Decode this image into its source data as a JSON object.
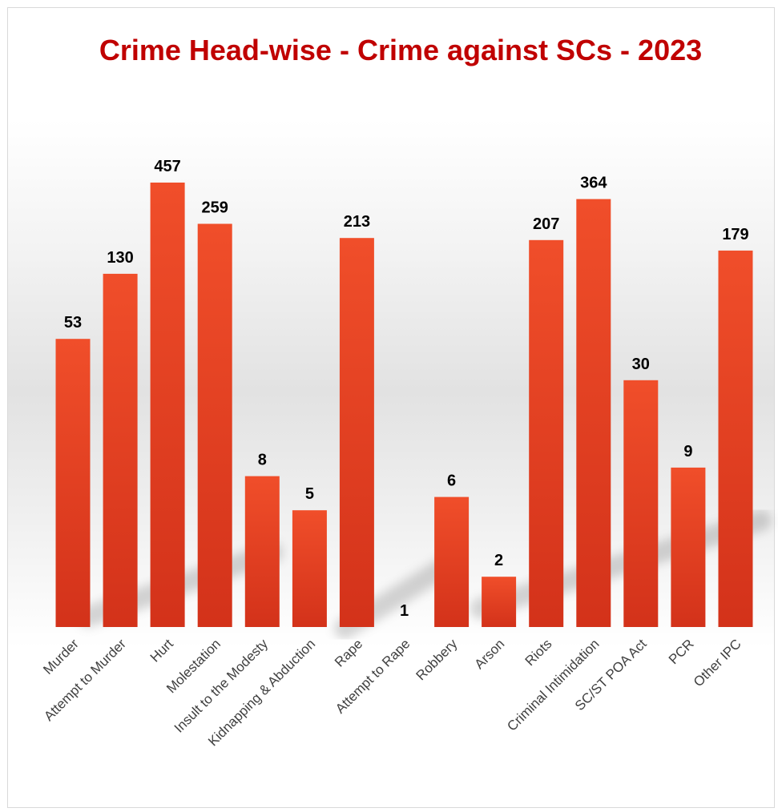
{
  "chart_data": {
    "type": "bar",
    "title": "Crime Head-wise - Crime against SCs - 2023",
    "xlabel": "",
    "ylabel": "",
    "categories": [
      "Murder",
      "Attempt to Murder",
      "Hurt",
      "Molestation",
      "Insult to the Modesty",
      "Kidnapping & Abduction",
      "Rape",
      "Attempt to Rape",
      "Robbery",
      "Arson",
      "Riots",
      "Criminal Intimidation",
      "SC/ST POA Act",
      "PCR",
      "Other IPC"
    ],
    "series": [
      {
        "values": [
          53,
          130,
          457,
          259,
          8,
          5,
          213,
          1,
          6,
          2,
          207,
          364,
          30,
          9,
          179
        ]
      }
    ],
    "scale": "log",
    "ylim": [
      1,
      457
    ],
    "grid": false,
    "legend": "none",
    "colors": {
      "bar_top": "#f04e2a",
      "bar_bottom": "#d3321a",
      "title": "#c00000"
    }
  }
}
